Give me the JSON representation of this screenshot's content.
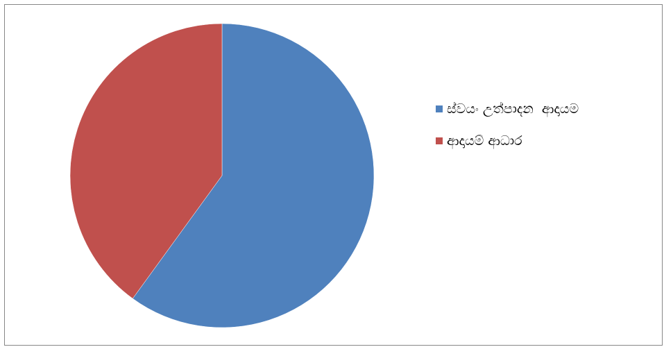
{
  "chart_data": {
    "type": "pie",
    "title": "",
    "legend_position": "right",
    "series": [
      {
        "name": "",
        "values": [
          60,
          40
        ]
      }
    ],
    "categories": [
      "ස්වයං උත්පාදන  ආදායම",
      "ආදායම් ආධාර"
    ],
    "colors": [
      "#4F81BD",
      "#C0504D"
    ],
    "start_angle_deg": 0,
    "direction": "clockwise"
  }
}
